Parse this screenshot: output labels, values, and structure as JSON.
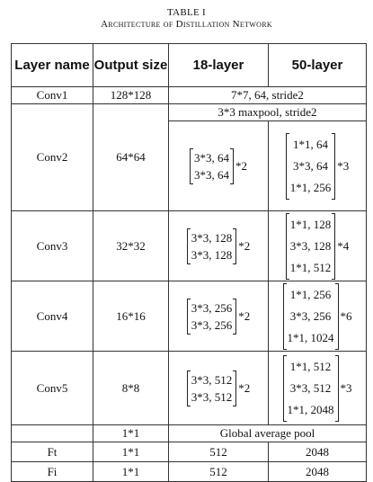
{
  "caption": {
    "label": "TABLE I",
    "title": "Architecture of Distillation Network"
  },
  "headers": [
    "Layer name",
    "Output size",
    "18-layer",
    "50-layer"
  ],
  "conv1": {
    "name": "Conv1",
    "size": "128*128",
    "config": "7*7, 64, stride2"
  },
  "maxpool": "3*3 maxpool, stride2",
  "blocks": [
    {
      "name": "Conv2",
      "size": "64*64",
      "l18": {
        "rows": [
          "3*3, 64",
          "3*3, 64"
        ],
        "mult": "*2"
      },
      "l50": {
        "rows": [
          "1*1, 64",
          "3*3, 64",
          "1*1, 256"
        ],
        "mult": "*3"
      }
    },
    {
      "name": "Conv3",
      "size": "32*32",
      "l18": {
        "rows": [
          "3*3, 128",
          "3*3, 128"
        ],
        "mult": "*2"
      },
      "l50": {
        "rows": [
          "1*1, 128",
          "3*3, 128",
          "1*1, 512"
        ],
        "mult": "*4"
      }
    },
    {
      "name": "Conv4",
      "size": "16*16",
      "l18": {
        "rows": [
          "3*3, 256",
          "3*3, 256"
        ],
        "mult": "*2"
      },
      "l50": {
        "rows": [
          "1*1, 256",
          "3*3, 256",
          "1*1, 1024"
        ],
        "mult": "*6"
      }
    },
    {
      "name": "Conv5",
      "size": "8*8",
      "l18": {
        "rows": [
          "3*3, 512",
          "3*3, 512"
        ],
        "mult": "*2"
      },
      "l50": {
        "rows": [
          "1*1, 512",
          "3*3, 512",
          "1*1, 2048"
        ],
        "mult": "*3"
      }
    }
  ],
  "pool": {
    "size": "1*1",
    "config": "Global average pool"
  },
  "ft": {
    "name": "Ft",
    "size": "1*1",
    "l18": "512",
    "l50": "2048"
  },
  "fi": {
    "name": "Fi",
    "size": "1*1",
    "l18": "512",
    "l50": "2048"
  }
}
